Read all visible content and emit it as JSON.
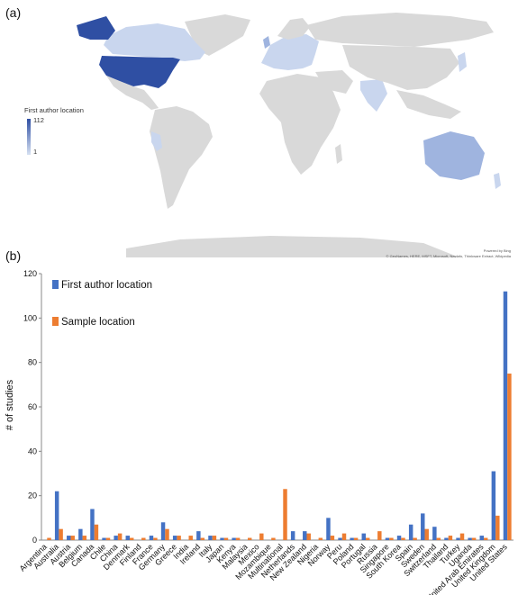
{
  "panels": {
    "a_label": "(a)",
    "b_label": "(b)"
  },
  "map": {
    "legend_title": "First author location",
    "legend_max": "112",
    "legend_min": "1",
    "credit_line1": "Powered by Bing",
    "credit_line2": "© GeoNames, HERE, MSFT, Microsoft, NavInfo, Thinkware Extract, Wikipedia",
    "colors": {
      "land": "#d9d9d9",
      "low": "#c9d6ee",
      "mid": "#9fb4df",
      "high": "#2f4fa3"
    }
  },
  "chart_data": {
    "type": "bar",
    "ylabel": "# of studies",
    "xlabel": "",
    "ylim": [
      0,
      120
    ],
    "yticks": [
      0,
      20,
      40,
      60,
      80,
      100,
      120
    ],
    "categories": [
      "Argentina",
      "Australia",
      "Austria",
      "Belgium",
      "Canada",
      "Chile",
      "China",
      "Denmark",
      "Finland",
      "France",
      "Germany",
      "Greece",
      "India",
      "Ireland",
      "Italy",
      "Japan",
      "Kenya",
      "Malaysia",
      "Mexico",
      "Mozambique",
      "Multinational",
      "Netherlands",
      "New Zealand",
      "Nigeria",
      "Norway",
      "Peru",
      "Poland",
      "Portugal",
      "Russia",
      "Singapore",
      "South Korea",
      "Spain",
      "Sweden",
      "Switzerland",
      "Thailand",
      "Turkey",
      "Uganda",
      "United Arab Emirates",
      "United Kingdom",
      "United States"
    ],
    "series": [
      {
        "name": "First author location",
        "color": "#4472c4",
        "values": [
          0,
          22,
          2,
          5,
          14,
          1,
          2,
          2,
          0,
          2,
          8,
          2,
          0,
          4,
          2,
          1,
          1,
          0,
          0,
          0,
          0,
          4,
          4,
          0,
          10,
          1,
          1,
          3,
          0,
          1,
          2,
          7,
          12,
          6,
          1,
          1,
          1,
          2,
          31,
          112
        ]
      },
      {
        "name": "Sample location",
        "color": "#ed7d31",
        "values": [
          1,
          5,
          2,
          2,
          7,
          1,
          3,
          1,
          1,
          1,
          5,
          2,
          2,
          1,
          2,
          1,
          1,
          1,
          3,
          1,
          23,
          0,
          3,
          1,
          2,
          3,
          1,
          1,
          4,
          1,
          1,
          1,
          5,
          1,
          2,
          3,
          1,
          1,
          11,
          75
        ]
      }
    ],
    "legend_position": "top-left",
    "grid": false
  }
}
